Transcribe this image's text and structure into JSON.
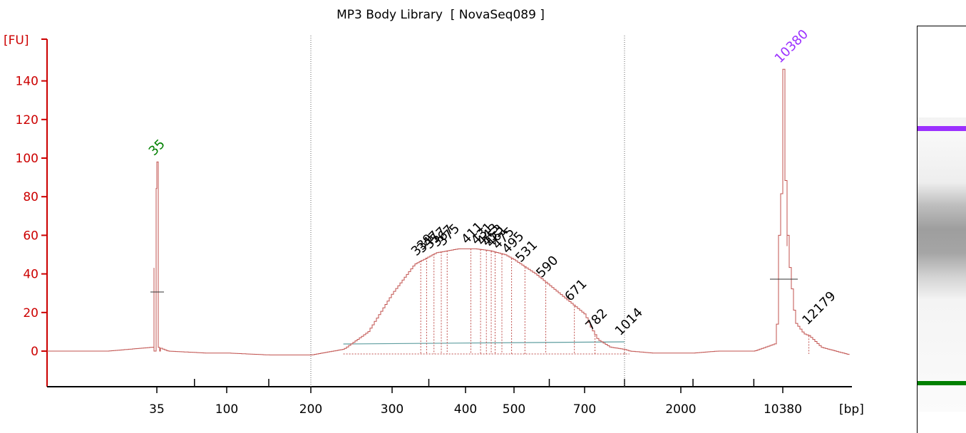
{
  "chart_data": {
    "type": "line",
    "title": "MP3 Body Library  [ NovaSeq089 ]",
    "ylabel": "[FU]",
    "xlabel": "[bp]",
    "ylim": [
      -19,
      160
    ],
    "x_scale": "nonlinear (electrophoresis migration)",
    "x_tick_labels": [
      "35",
      "100",
      "200",
      "300",
      "400",
      "500",
      "700",
      "2000",
      "10380"
    ],
    "y_ticks": [
      0,
      20,
      40,
      60,
      80,
      100,
      120,
      140
    ],
    "grid": false,
    "colors": {
      "axis": "#cc0000",
      "trace": "#c0504d",
      "lower_marker": "#008000",
      "upper_marker": "#9b30ff",
      "region": "#5f9ea0"
    },
    "markers": [
      {
        "label": "35",
        "size_bp": 35,
        "fu": 98,
        "color": "#008000"
      },
      {
        "label": "10380",
        "size_bp": 10380,
        "fu": 146,
        "color": "#9b30ff"
      }
    ],
    "peak_labels": [
      "339",
      "347",
      "357",
      "367",
      "375",
      "411",
      "431",
      "443",
      "453",
      "461",
      "475",
      "495",
      "531",
      "590",
      "671",
      "782",
      "1014",
      "12179"
    ],
    "series": [
      {
        "x_bp": [
          25,
          34,
          35,
          36,
          45,
          80,
          100,
          150,
          200,
          240,
          270,
          300,
          330,
          360,
          390,
          420,
          450,
          480,
          510,
          560,
          620,
          680,
          740,
          800,
          900,
          1100,
          1500,
          2000,
          3000,
          5000,
          8000,
          9800,
          10200,
          10380,
          10600,
          11200,
          11800,
          12179,
          13000,
          15000
        ],
        "y_fu": [
          0,
          2,
          98,
          2,
          0,
          -1,
          -1,
          -2,
          -2,
          1,
          10,
          30,
          45,
          51,
          53,
          53,
          52,
          50,
          46,
          40,
          31,
          22,
          13,
          6,
          2,
          0,
          -1,
          -1,
          -1,
          0,
          0,
          4,
          80,
          146,
          60,
          15,
          9,
          8,
          2,
          -2
        ]
      }
    ]
  },
  "gel": {
    "upper_band_color": "#9b30ff",
    "lower_band_color": "#008000"
  }
}
